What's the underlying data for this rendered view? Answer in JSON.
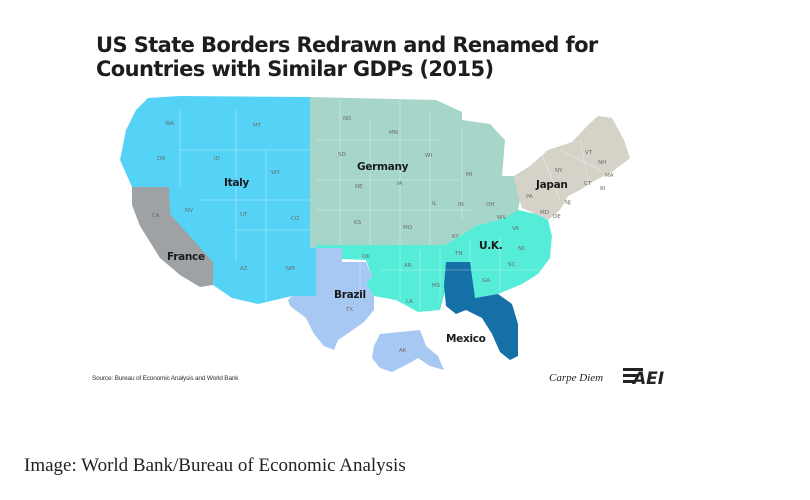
{
  "title_line1": "US State Borders Redrawn and Renamed for",
  "title_line2": "Countries with Similar GDPs (2015)",
  "regions": {
    "italy": {
      "label": "Italy",
      "color": "#55d3f6"
    },
    "germany": {
      "label": "Germany",
      "color": "#a6d6c9"
    },
    "japan": {
      "label": "Japan",
      "color": "#d5d2c8"
    },
    "france": {
      "label": "France",
      "color": "#9ea2a5"
    },
    "uk": {
      "label": "U.K.",
      "color": "#55ecd8"
    },
    "brazil": {
      "label": "Brazil",
      "color": "#a8c8f4"
    },
    "mexico": {
      "label": "Mexico",
      "color": "#1670a8"
    },
    "alaska_color": "#a8c8f4"
  },
  "state_abbr": {
    "wa": "WA",
    "mt": "MT",
    "or": "OR",
    "id": "ID",
    "wy": "WY",
    "nv": "NV",
    "ut": "UT",
    "co": "CO",
    "ca": "CA",
    "az": "AZ",
    "nm": "NM",
    "nd": "ND",
    "mn": "MN",
    "sd": "SD",
    "wi": "WI",
    "mi": "MI",
    "ne": "NE",
    "ia": "IA",
    "il": "IL",
    "in": "IN",
    "oh": "OH",
    "ks": "KS",
    "mo": "MO",
    "ny": "NY",
    "pa": "PA",
    "vt": "VT",
    "nh": "NH",
    "ma": "MA",
    "ct": "CT",
    "ri": "RI",
    "nj": "NJ",
    "ok": "OK",
    "ar": "AR",
    "ky": "KY",
    "tn": "TN",
    "va": "VA",
    "nc": "NC",
    "sc": "SC",
    "ga": "GA",
    "la": "LA",
    "ms": "MS",
    "tx": "TX",
    "ak": "AK",
    "wv": "WV",
    "md": "MD",
    "de": "DE"
  },
  "source_text": "Source: Bureau of Economic Analysis and World Bank",
  "brand_text": "Carpe Diem",
  "logo_text": "AEI",
  "image_credit": "Image: World Bank/Bureau of Economic Analysis"
}
